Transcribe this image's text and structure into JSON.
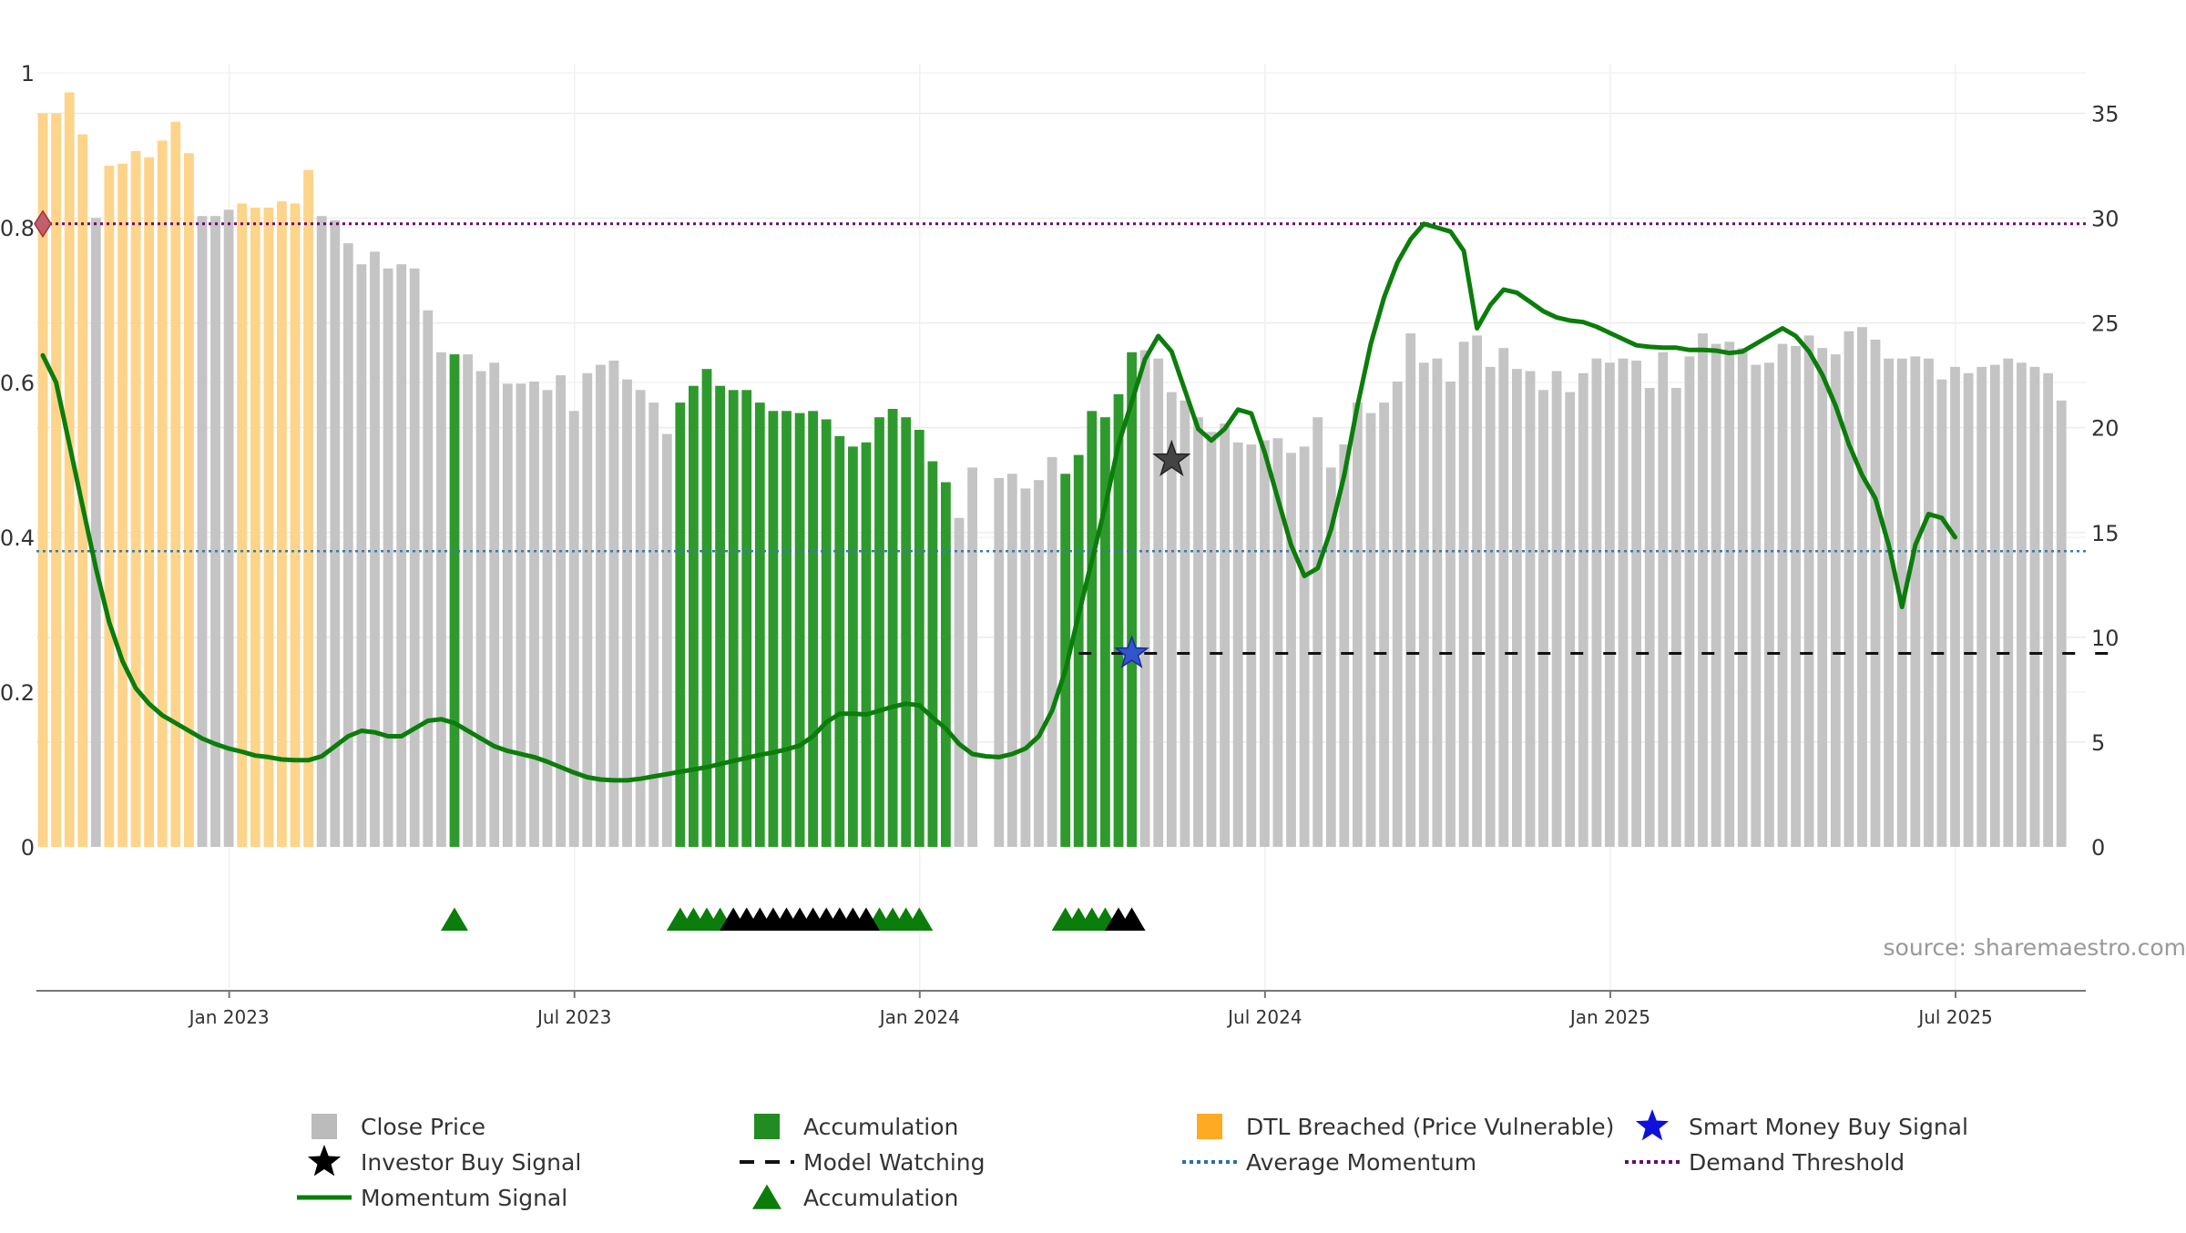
{
  "chart_data": {
    "type": "bar",
    "title": "",
    "xlabel": "",
    "ylabel": "",
    "source_label": "source: sharemaestro.com",
    "left_axis": {
      "ticks": [
        "0",
        "0.2",
        "0.4",
        "0.6",
        "0.8",
        "1"
      ],
      "values": [
        0,
        0.2,
        0.4,
        0.6,
        0.8,
        1
      ],
      "ylim": [
        0,
        1
      ]
    },
    "right_axis": {
      "ticks": [
        "0",
        "5",
        "10",
        "15",
        "20",
        "25",
        "30",
        "35"
      ],
      "values": [
        0,
        5,
        10,
        15,
        20,
        25,
        30,
        35
      ],
      "ylim": [
        0,
        37.8
      ]
    },
    "x_ticks": [
      "Jan 2023",
      "Jul 2023",
      "Jan 2024",
      "Jul 2024",
      "Jan 2025",
      "Jul 2025"
    ],
    "x_tick_weeks": [
      14,
      40,
      66,
      92,
      118,
      144
    ],
    "week_start": "2022-10-03",
    "bars": {
      "values": [
        35,
        35,
        36,
        34,
        30,
        32.5,
        32.6,
        33.2,
        32.9,
        33.7,
        34.6,
        33.1,
        30.1,
        30.1,
        30.4,
        30.7,
        30.5,
        30.5,
        30.8,
        30.7,
        32.3,
        30.1,
        29.9,
        28.8,
        27.8,
        28.4,
        27.6,
        27.8,
        27.6,
        25.6,
        23.6,
        23.5,
        23.5,
        22.7,
        23.1,
        22.1,
        22.1,
        22.2,
        21.8,
        22.5,
        20.8,
        22.6,
        23,
        23.2,
        22.3,
        21.8,
        21.2,
        19.7,
        21.2,
        22,
        22.8,
        22,
        21.8,
        21.8,
        21.2,
        20.8,
        20.8,
        20.7,
        20.8,
        20.4,
        19.6,
        19.1,
        19.3,
        20.5,
        20.9,
        20.5,
        19.9,
        18.4,
        17.4,
        15.7,
        18.1,
        0,
        17.6,
        17.8,
        17.1,
        17.5,
        18.6,
        17.8,
        18.7,
        20.8,
        20.5,
        21.6,
        23.6,
        23.7,
        23.3,
        21.7,
        21.3,
        20.5,
        19.8,
        20.2,
        19.3,
        19.2,
        19.4,
        19.5,
        18.8,
        19.1,
        20.5,
        18.1,
        19.2,
        21.2,
        20.7,
        21.2,
        22.2,
        24.5,
        23.1,
        23.3,
        22.2,
        24.1,
        24.4,
        22.9,
        23.8,
        22.8,
        22.7,
        21.8,
        22.7,
        21.7,
        22.6,
        23.3,
        23.1,
        23.3,
        23.2,
        21.9,
        23.6,
        21.9,
        23.4,
        24.5,
        24,
        24.1,
        23.8,
        23,
        23.1,
        24,
        23.9,
        24.4,
        23.8,
        23.5,
        24.6,
        24.8,
        24.2,
        23.3,
        23.3,
        23.4,
        23.3,
        22.3,
        22.9,
        22.6,
        22.9,
        23,
        23.3,
        23.1,
        22.9,
        22.6,
        21.3
      ],
      "categories_by_week": {
        "accumulation": [
          31,
          48,
          49,
          50,
          51,
          52,
          53,
          54,
          55,
          56,
          57,
          58,
          59,
          60,
          61,
          62,
          63,
          64,
          65,
          66,
          67,
          68,
          77,
          78,
          79,
          80,
          81,
          82
        ],
        "dtl_breached": [
          0,
          1,
          2,
          3,
          5,
          6,
          7,
          8,
          9,
          10,
          11,
          15,
          16,
          17,
          18,
          19,
          20
        ],
        "close_price": "all other weeks"
      }
    },
    "momentum": {
      "scale": "left",
      "values": [
        0.635,
        0.6,
        0.52,
        0.44,
        0.36,
        0.29,
        0.24,
        0.205,
        0.185,
        0.17,
        0.16,
        0.15,
        0.14,
        0.133,
        0.127,
        0.123,
        0.118,
        0.116,
        0.113,
        0.112,
        0.112,
        0.117,
        0.13,
        0.143,
        0.15,
        0.148,
        0.143,
        0.143,
        0.153,
        0.163,
        0.165,
        0.16,
        0.15,
        0.14,
        0.13,
        0.124,
        0.12,
        0.116,
        0.11,
        0.103,
        0.096,
        0.09,
        0.087,
        0.086,
        0.086,
        0.088,
        0.091,
        0.094,
        0.097,
        0.1,
        0.103,
        0.107,
        0.111,
        0.115,
        0.119,
        0.122,
        0.126,
        0.131,
        0.143,
        0.161,
        0.172,
        0.172,
        0.171,
        0.176,
        0.181,
        0.185,
        0.183,
        0.167,
        0.153,
        0.133,
        0.12,
        0.117,
        0.116,
        0.12,
        0.127,
        0.143,
        0.176,
        0.228,
        0.3,
        0.37,
        0.44,
        0.52,
        0.575,
        0.63,
        0.66,
        0.64,
        0.59,
        0.54,
        0.525,
        0.54,
        0.565,
        0.56,
        0.51,
        0.45,
        0.39,
        0.35,
        0.36,
        0.41,
        0.48,
        0.57,
        0.65,
        0.71,
        0.755,
        0.785,
        0.805,
        0.8,
        0.795,
        0.77,
        0.67,
        0.7,
        0.72,
        0.716,
        0.704,
        0.692,
        0.684,
        0.68,
        0.678,
        0.672,
        0.664,
        0.656,
        0.648,
        0.646,
        0.645,
        0.645,
        0.642,
        0.642,
        0.641,
        0.638,
        0.64,
        0.65,
        0.66,
        0.67,
        0.66,
        0.64,
        0.61,
        0.57,
        0.52,
        0.48,
        0.45,
        0.39,
        0.31,
        0.39,
        0.43,
        0.425,
        0.4
      ]
    },
    "average_momentum": {
      "value": 0.382,
      "scale": "left"
    },
    "demand_threshold": {
      "value": 0.805,
      "scale": "left"
    },
    "model_watching": {
      "from_week": 78,
      "to_week": 157,
      "value": 0.25,
      "scale": "left"
    },
    "signals": {
      "accumulation_weeks": [
        31,
        48,
        49,
        50,
        51,
        63,
        64,
        65,
        66,
        77,
        78,
        79,
        80
      ],
      "investor_buy_weeks": [
        52,
        53,
        54,
        55,
        56,
        57,
        58,
        59,
        60,
        61,
        62,
        81,
        82
      ],
      "investor_buy_star": {
        "week": 85,
        "value": 0.5,
        "scale": "left"
      },
      "smart_money_star": {
        "week": 82,
        "value": 0.25,
        "scale": "left"
      },
      "demand_marker": {
        "week": 0,
        "value": 0.805,
        "scale": "left"
      }
    },
    "legend": {
      "position": "bottom",
      "entries": [
        {
          "label": "Close Price",
          "symbol": "square",
          "color": "#bbbbbb"
        },
        {
          "label": "Accumulation",
          "symbol": "square",
          "color": "#228b22"
        },
        {
          "label": "DTL Breached (Price Vulnerable)",
          "symbol": "square",
          "color": "#ffaa22"
        },
        {
          "label": "Smart Money Buy Signal",
          "symbol": "star",
          "color": "#1010dd"
        },
        {
          "label": "Investor Buy Signal",
          "symbol": "star",
          "color": "#000000"
        },
        {
          "label": "Model Watching",
          "symbol": "dash",
          "color": "#111111"
        },
        {
          "label": "Average Momentum",
          "symbol": "dotted",
          "color": "#2a6fa6"
        },
        {
          "label": "Demand Threshold",
          "symbol": "dotted",
          "color": "#6a0a6a"
        },
        {
          "label": "Momentum Signal",
          "symbol": "line",
          "color": "#0b7d0b"
        },
        {
          "label": "Accumulation",
          "symbol": "triangle",
          "color": "#0b7d0b"
        }
      ]
    },
    "colors": {
      "close_price": "#c4c4c4",
      "accumulation": "#2e9a2e",
      "dtl_breached": "#fdd48a",
      "momentum": "#0b7d0b",
      "average_momentum": "#3b7aa8",
      "demand_threshold": "#6a0a6a",
      "grid": "#ececec"
    }
  }
}
